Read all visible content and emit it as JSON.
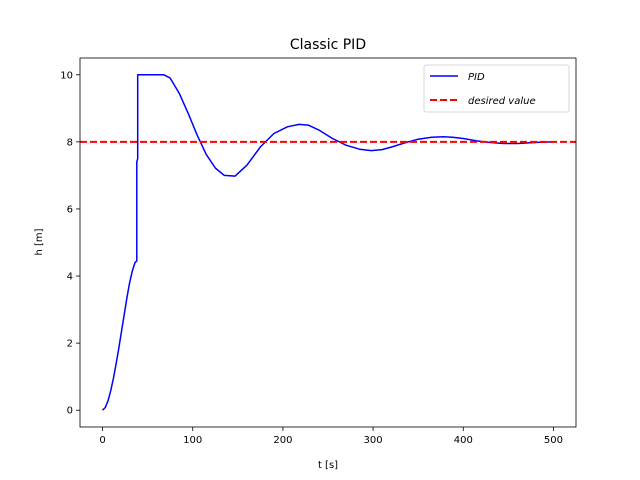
{
  "chart_data": {
    "type": "line",
    "title": "Classic PID",
    "xlabel": "t [s]",
    "ylabel": "h [m]",
    "xlim": [
      -25,
      525
    ],
    "ylim": [
      -0.5,
      10.5
    ],
    "xticks": [
      "0",
      "100",
      "200",
      "300",
      "400",
      "500"
    ],
    "xtick_values": [
      0,
      100,
      200,
      300,
      400,
      500
    ],
    "yticks": [
      "0",
      "2",
      "4",
      "6",
      "8",
      "10"
    ],
    "ytick_values": [
      0,
      2,
      4,
      6,
      8,
      10
    ],
    "grid": false,
    "legend": "top-right",
    "series": [
      {
        "name": "PID",
        "color": "#0000ff",
        "style": "solid",
        "x": [
          0,
          3,
          6,
          9,
          12,
          15,
          18,
          21,
          24,
          27,
          30,
          33,
          36,
          38,
          38,
          39,
          39,
          40,
          50,
          60,
          68,
          75,
          85,
          95,
          105,
          115,
          125,
          135,
          147,
          160,
          175,
          190,
          205,
          218,
          228,
          240,
          255,
          270,
          285,
          298,
          310,
          322,
          335,
          350,
          365,
          378,
          388,
          400,
          415,
          430,
          445,
          460,
          472,
          485,
          500
        ],
        "y": [
          0,
          0.08,
          0.28,
          0.58,
          0.95,
          1.38,
          1.85,
          2.35,
          2.85,
          3.35,
          3.8,
          4.15,
          4.4,
          4.45,
          7.4,
          7.5,
          10,
          10,
          10,
          10,
          10,
          9.9,
          9.45,
          8.85,
          8.2,
          7.62,
          7.22,
          7.0,
          6.98,
          7.3,
          7.85,
          8.25,
          8.45,
          8.52,
          8.5,
          8.35,
          8.1,
          7.9,
          7.78,
          7.74,
          7.77,
          7.86,
          7.97,
          8.08,
          8.14,
          8.15,
          8.14,
          8.1,
          8.03,
          7.98,
          7.95,
          7.95,
          7.97,
          7.99,
          8.0
        ]
      },
      {
        "name": "desired value",
        "color": "#ff0000",
        "style": "dashed",
        "y_constant": 8
      }
    ]
  }
}
